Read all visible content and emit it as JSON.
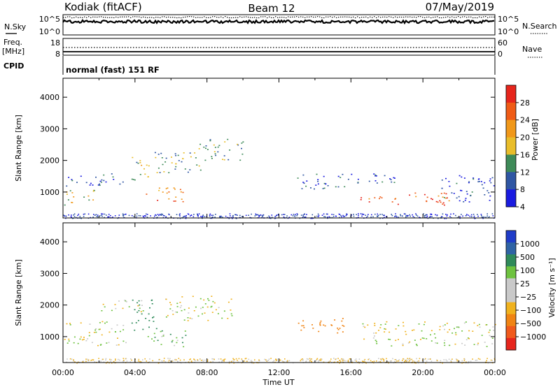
{
  "header": {
    "title": "Kodiak (fitACF)",
    "beam": "Beam 12",
    "date": "07/May/2019"
  },
  "top_panels": {
    "nsky": {
      "label": "N.Sky",
      "ticks_left": [
        "10^5",
        "10^0"
      ],
      "ticks_right": [
        "10^5",
        "10^0"
      ],
      "right_label": "N.Search"
    },
    "freq": {
      "label_line1": "Freq.",
      "label_line2": "[MHz]",
      "ticks_left": [
        "18",
        "8"
      ],
      "ticks_right": [
        "60",
        "0"
      ],
      "right_label": "Nave"
    },
    "cpid": {
      "label": "CPID",
      "text": "normal (fast) 151 RF"
    }
  },
  "chart_data": [
    {
      "type": "heatmap",
      "name": "power",
      "ylabel": "Slant Range [km]",
      "y_ticks": [
        "4000",
        "3000",
        "2000",
        "1000"
      ],
      "ylim": [
        180,
        4600
      ],
      "xlim": [
        0,
        24
      ],
      "colorbar": {
        "label": "Power [dB]",
        "tick_labels": [
          "28",
          "24",
          "20",
          "16",
          "12",
          "8",
          "4"
        ],
        "colors": [
          "#e6251c",
          "#ef5b16",
          "#f0981a",
          "#e9bd2a",
          "#3e8a58",
          "#2f56a3",
          "#1a1be0"
        ]
      },
      "regions": [
        {
          "t0": 0.0,
          "t1": 1.8,
          "r0": 600,
          "r1": 1100,
          "level": 18
        },
        {
          "t0": 0.0,
          "t1": 3.5,
          "r0": 1200,
          "r1": 1600,
          "level": 10
        },
        {
          "t0": 3.8,
          "t1": 4.8,
          "r0": 1300,
          "r1": 2200,
          "level": 16
        },
        {
          "t0": 4.6,
          "t1": 6.8,
          "r0": 700,
          "r1": 1200,
          "level": 24
        },
        {
          "t0": 5.0,
          "t1": 8.0,
          "r0": 1600,
          "r1": 2300,
          "level": 14
        },
        {
          "t0": 7.5,
          "t1": 10.0,
          "r0": 2000,
          "r1": 2700,
          "level": 14
        },
        {
          "t0": 13.0,
          "t1": 16.5,
          "r0": 1100,
          "r1": 1600,
          "level": 10
        },
        {
          "t0": 16.5,
          "t1": 21.5,
          "r0": 600,
          "r1": 1000,
          "level": 26
        },
        {
          "t0": 16.8,
          "t1": 19.5,
          "r0": 1300,
          "r1": 1600,
          "level": 10
        },
        {
          "t0": 21.0,
          "t1": 24.0,
          "r0": 700,
          "r1": 1600,
          "level": 8
        }
      ]
    },
    {
      "type": "heatmap",
      "name": "velocity",
      "ylabel": "Slant Range [km]",
      "y_ticks": [
        "4000",
        "3000",
        "2000",
        "1000"
      ],
      "ylim": [
        180,
        4600
      ],
      "xlim": [
        0,
        24
      ],
      "x_ticks": [
        "00:00",
        "04:00",
        "08:00",
        "12:00",
        "16:00",
        "20:00",
        "00:00"
      ],
      "xlabel": "Time UT",
      "colorbar": {
        "label": "Velocity [m s⁻¹]",
        "tick_labels": [
          "1000",
          "500",
          "100",
          "25",
          "−25",
          "−100",
          "−500",
          "−1000"
        ],
        "colors": [
          "#1f3cc8",
          "#2f63a4",
          "#2f8a5a",
          "#6ec23f",
          "#c9c9c9",
          "#c9c9c9",
          "#f0b21e",
          "#f08414",
          "#f05a1c",
          "#e6251c"
        ]
      },
      "regions": [
        {
          "t0": 0.0,
          "t1": 3.5,
          "r0": 700,
          "r1": 1500,
          "level": 0
        },
        {
          "t0": 2.0,
          "t1": 4.5,
          "r0": 1800,
          "r1": 2200,
          "level": 0
        },
        {
          "t0": 3.8,
          "t1": 5.0,
          "r0": 1200,
          "r1": 2300,
          "level": 300
        },
        {
          "t0": 4.5,
          "t1": 6.8,
          "r0": 700,
          "r1": 1300,
          "level": 80
        },
        {
          "t0": 5.5,
          "t1": 9.5,
          "r0": 1500,
          "r1": 2300,
          "level": 0
        },
        {
          "t0": 13.0,
          "t1": 16.0,
          "r0": 1100,
          "r1": 1600,
          "level": -300
        },
        {
          "t0": 16.5,
          "t1": 24.0,
          "r0": 700,
          "r1": 1500,
          "level": 0
        }
      ]
    }
  ]
}
